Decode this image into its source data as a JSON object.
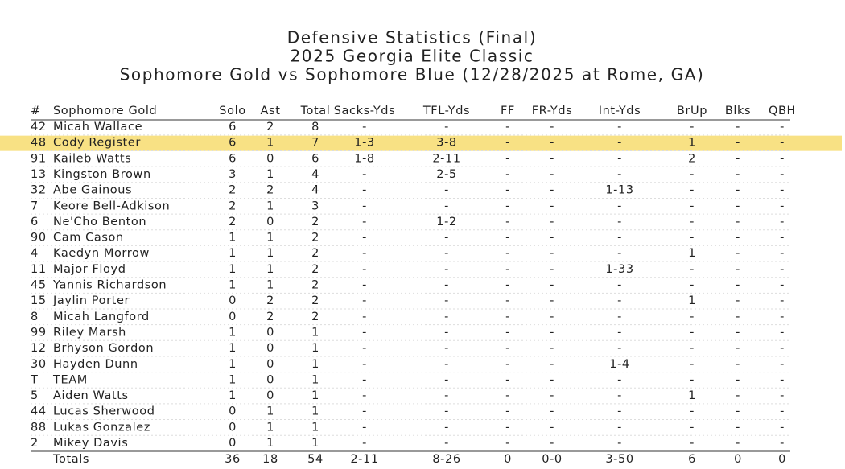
{
  "header": {
    "title": "Defensive Statistics (Final)",
    "subtitle": "2025 Georgia Elite Classic",
    "matchup": "Sophomore Gold vs Sophomore Blue (12/28/2025 at Rome, GA)"
  },
  "table": {
    "columns": [
      "#",
      "Sophomore Gold",
      "Solo",
      "Ast",
      "Total",
      "Sacks-Yds",
      "TFL-Yds",
      "FF",
      "FR-Yds",
      "Int-Yds",
      "BrUp",
      "Blks",
      "QBH"
    ],
    "highlight_row": 1,
    "rows": [
      [
        42,
        "Micah Wallace",
        6,
        2,
        8,
        "-",
        "-",
        "-",
        "-",
        "-",
        "-",
        "-",
        "-"
      ],
      [
        48,
        "Cody Register",
        6,
        1,
        7,
        "1-3",
        "3-8",
        "-",
        "-",
        "-",
        1,
        "-",
        "-"
      ],
      [
        91,
        "Kaileb Watts",
        6,
        0,
        6,
        "1-8",
        "2-11",
        "-",
        "-",
        "-",
        2,
        "-",
        "-"
      ],
      [
        13,
        "Kingston Brown",
        3,
        1,
        4,
        "-",
        "2-5",
        "-",
        "-",
        "-",
        "-",
        "-",
        "-"
      ],
      [
        32,
        "Abe Gainous",
        2,
        2,
        4,
        "-",
        "-",
        "-",
        "-",
        "1-13",
        "-",
        "-",
        "-"
      ],
      [
        7,
        "Keore Bell-Adkison",
        2,
        1,
        3,
        "-",
        "-",
        "-",
        "-",
        "-",
        "-",
        "-",
        "-"
      ],
      [
        6,
        "Ne'Cho Benton",
        2,
        0,
        2,
        "-",
        "1-2",
        "-",
        "-",
        "-",
        "-",
        "-",
        "-"
      ],
      [
        90,
        "Cam Cason",
        1,
        1,
        2,
        "-",
        "-",
        "-",
        "-",
        "-",
        "-",
        "-",
        "-"
      ],
      [
        4,
        "Kaedyn Morrow",
        1,
        1,
        2,
        "-",
        "-",
        "-",
        "-",
        "-",
        1,
        "-",
        "-"
      ],
      [
        11,
        "Major Floyd",
        1,
        1,
        2,
        "-",
        "-",
        "-",
        "-",
        "1-33",
        "-",
        "-",
        "-"
      ],
      [
        45,
        "Yannis Richardson",
        1,
        1,
        2,
        "-",
        "-",
        "-",
        "-",
        "-",
        "-",
        "-",
        "-"
      ],
      [
        15,
        "Jaylin Porter",
        0,
        2,
        2,
        "-",
        "-",
        "-",
        "-",
        "-",
        1,
        "-",
        "-"
      ],
      [
        8,
        "Micah Langford",
        0,
        2,
        2,
        "-",
        "-",
        "-",
        "-",
        "-",
        "-",
        "-",
        "-"
      ],
      [
        99,
        "Riley Marsh",
        1,
        0,
        1,
        "-",
        "-",
        "-",
        "-",
        "-",
        "-",
        "-",
        "-"
      ],
      [
        12,
        "Brhyson Gordon",
        1,
        0,
        1,
        "-",
        "-",
        "-",
        "-",
        "-",
        "-",
        "-",
        "-"
      ],
      [
        30,
        "Hayden Dunn",
        1,
        0,
        1,
        "-",
        "-",
        "-",
        "-",
        "1-4",
        "-",
        "-",
        "-"
      ],
      [
        "T",
        "TEAM",
        1,
        0,
        1,
        "-",
        "-",
        "-",
        "-",
        "-",
        "-",
        "-",
        "-"
      ],
      [
        5,
        "Aiden Watts",
        1,
        0,
        1,
        "-",
        "-",
        "-",
        "-",
        "-",
        1,
        "-",
        "-"
      ],
      [
        44,
        "Lucas Sherwood",
        0,
        1,
        1,
        "-",
        "-",
        "-",
        "-",
        "-",
        "-",
        "-",
        "-"
      ],
      [
        88,
        "Lukas Gonzalez",
        0,
        1,
        1,
        "-",
        "-",
        "-",
        "-",
        "-",
        "-",
        "-",
        "-"
      ],
      [
        2,
        "Mikey Davis",
        0,
        1,
        1,
        "-",
        "-",
        "-",
        "-",
        "-",
        "-",
        "-",
        "-"
      ]
    ],
    "totals": [
      "Totals",
      36,
      18,
      54,
      "2-11",
      "8-26",
      0,
      "0-0",
      "3-50",
      6,
      0,
      0
    ]
  }
}
